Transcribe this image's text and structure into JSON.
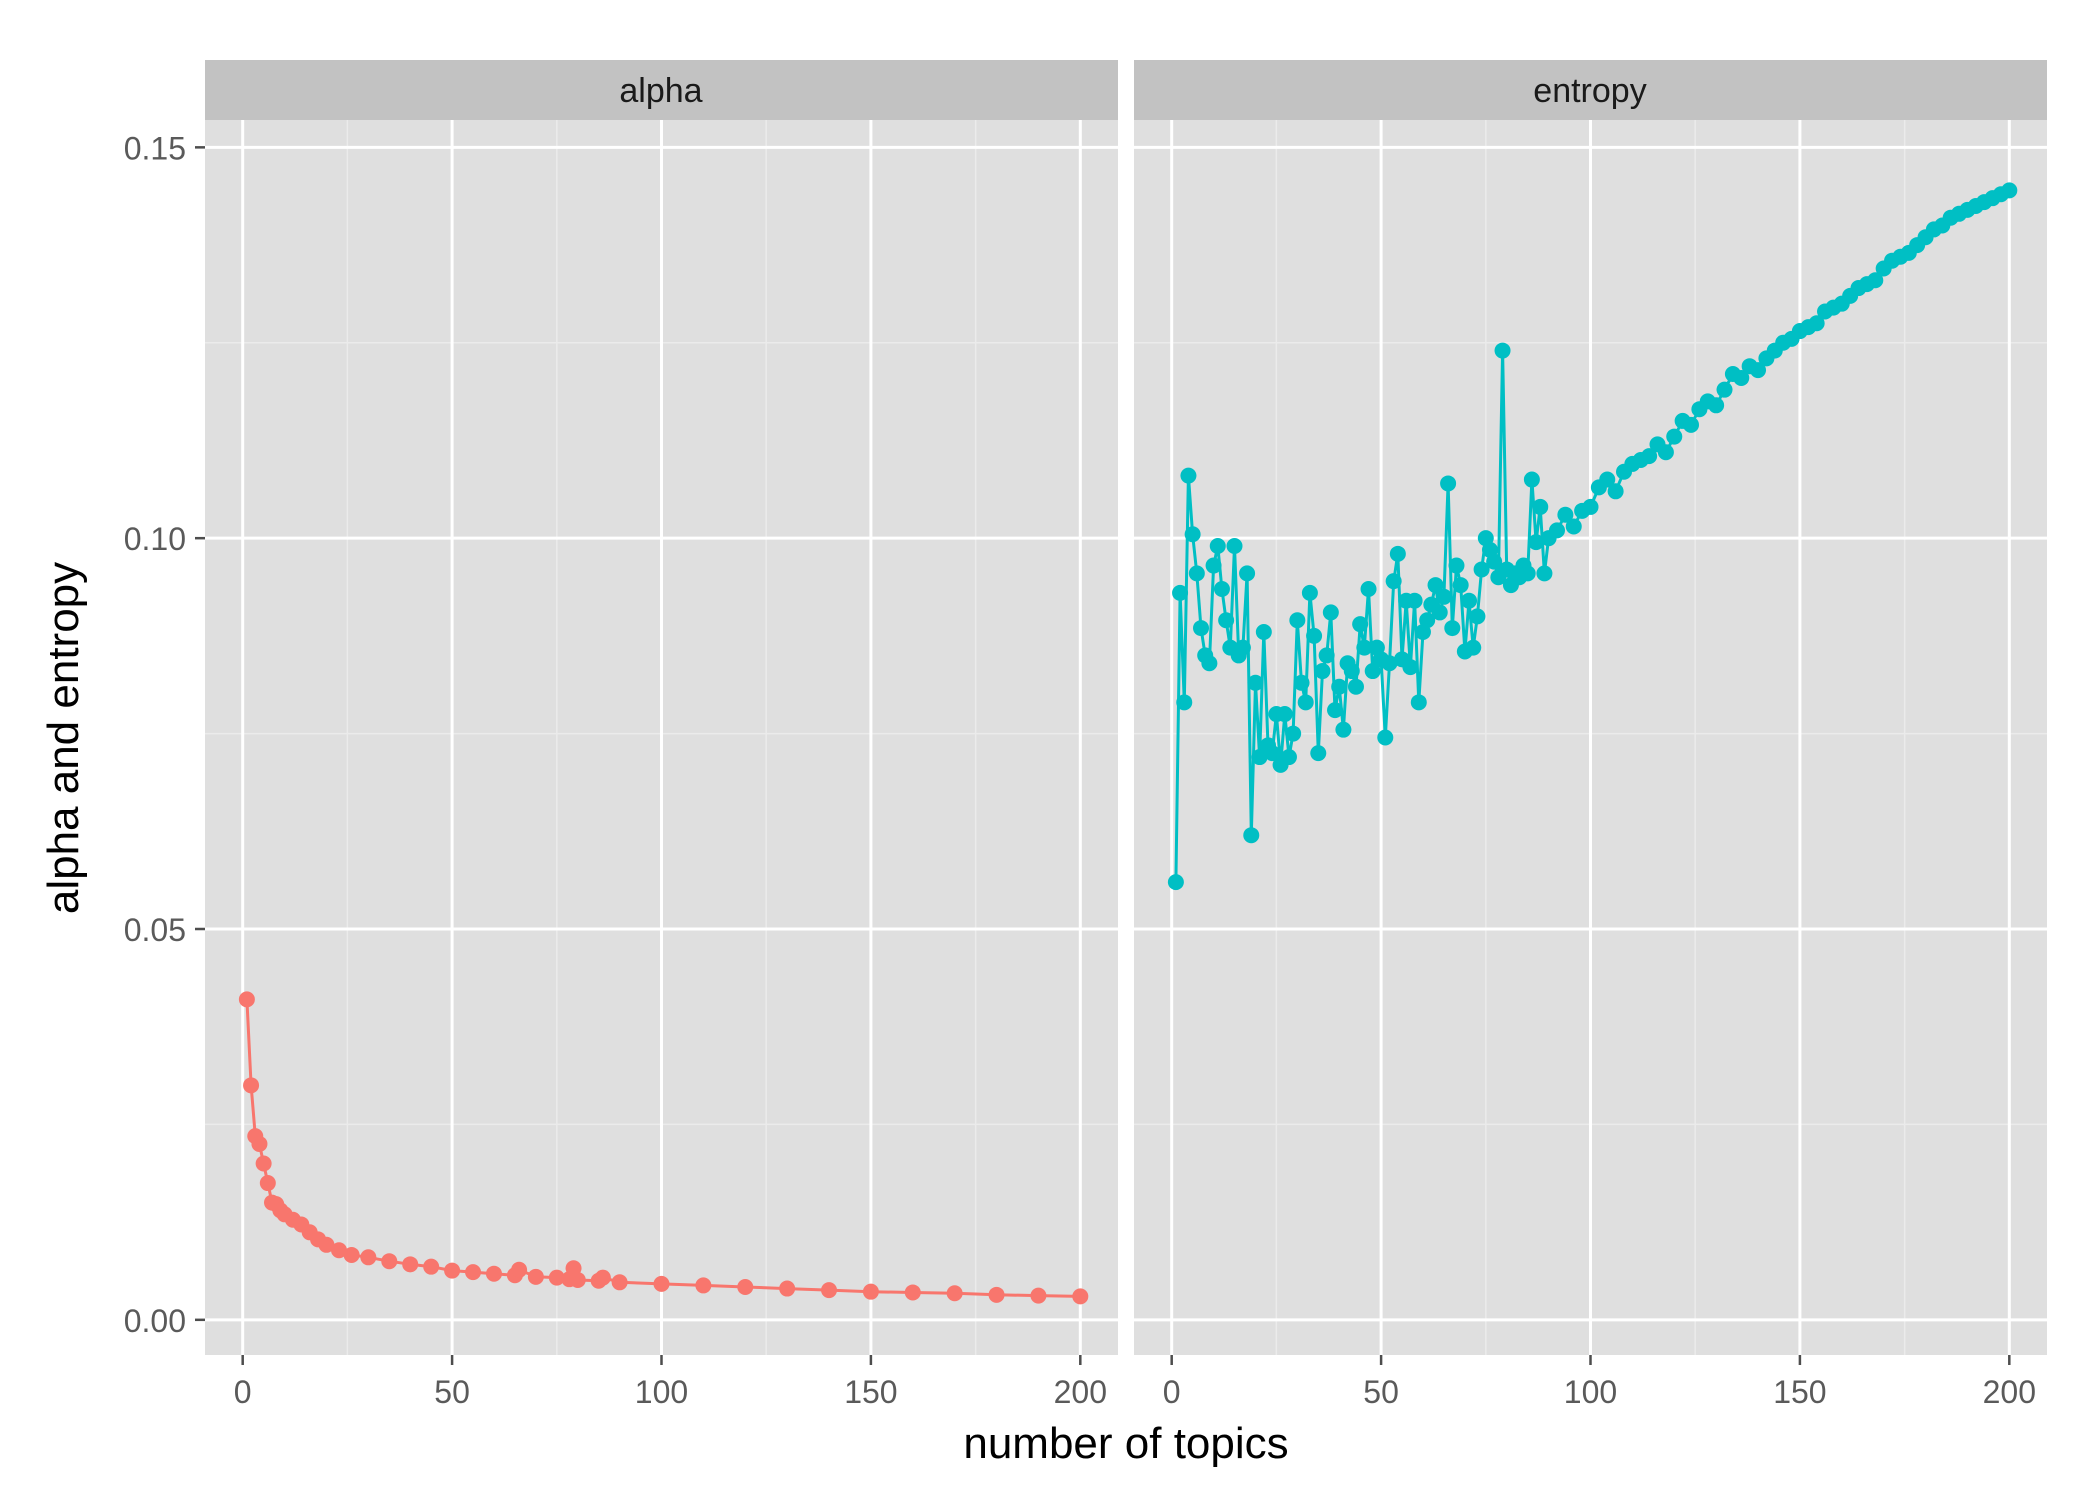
{
  "chart_data": {
    "type": "line",
    "xlabel": "number of topics",
    "ylabel": "alpha and entropy",
    "xlim": [
      -9,
      209
    ],
    "ylim": [
      -0.0045,
      0.1535
    ],
    "x_ticks": [
      0,
      50,
      100,
      150,
      200
    ],
    "y_ticks": [
      0.0,
      0.05,
      0.1,
      0.15
    ],
    "x_tick_labels": [
      "0",
      "50",
      "100",
      "150",
      "200"
    ],
    "y_tick_labels": [
      "0.00",
      "0.05",
      "0.10",
      "0.15"
    ],
    "grid": true,
    "legend": "none",
    "panels": [
      {
        "strip_label": "alpha",
        "color": "#F8766D",
        "x": [
          1,
          2,
          3,
          4,
          5,
          6,
          7,
          8,
          9,
          10,
          12,
          14,
          16,
          18,
          20,
          23,
          26,
          30,
          35,
          40,
          45,
          50,
          55,
          60,
          65,
          66,
          70,
          75,
          78,
          79,
          80,
          85,
          86,
          90,
          100,
          110,
          120,
          130,
          140,
          150,
          160,
          170,
          180,
          190,
          200
        ],
        "values": [
          0.041,
          0.03,
          0.0235,
          0.0225,
          0.02,
          0.0175,
          0.015,
          0.0148,
          0.014,
          0.0135,
          0.0128,
          0.0122,
          0.0112,
          0.0103,
          0.0096,
          0.0089,
          0.0083,
          0.008,
          0.0075,
          0.0071,
          0.0068,
          0.0063,
          0.0061,
          0.0059,
          0.0057,
          0.0064,
          0.0055,
          0.0054,
          0.0052,
          0.0066,
          0.0051,
          0.005,
          0.0054,
          0.0048,
          0.0046,
          0.0044,
          0.0042,
          0.004,
          0.0038,
          0.0036,
          0.0035,
          0.0034,
          0.0032,
          0.0031,
          0.003
        ]
      },
      {
        "strip_label": "entropy",
        "color": "#00BFC4",
        "x": [
          1,
          2,
          3,
          4,
          5,
          6,
          7,
          8,
          9,
          10,
          11,
          12,
          13,
          14,
          15,
          16,
          17,
          18,
          19,
          20,
          21,
          22,
          23,
          24,
          25,
          26,
          27,
          28,
          29,
          30,
          31,
          32,
          33,
          34,
          35,
          36,
          37,
          38,
          39,
          40,
          41,
          42,
          43,
          44,
          45,
          46,
          47,
          48,
          49,
          50,
          51,
          52,
          53,
          54,
          55,
          56,
          57,
          58,
          59,
          60,
          61,
          62,
          63,
          64,
          65,
          66,
          67,
          68,
          69,
          70,
          71,
          72,
          73,
          74,
          75,
          76,
          77,
          78,
          79,
          80,
          81,
          82,
          83,
          84,
          85,
          86,
          87,
          88,
          89,
          90,
          92,
          94,
          96,
          98,
          100,
          102,
          104,
          106,
          108,
          110,
          112,
          114,
          116,
          118,
          120,
          122,
          124,
          126,
          128,
          130,
          132,
          134,
          136,
          138,
          140,
          142,
          144,
          146,
          148,
          150,
          152,
          154,
          156,
          158,
          160,
          162,
          164,
          166,
          168,
          170,
          172,
          174,
          176,
          178,
          180,
          182,
          184,
          186,
          188,
          190,
          192,
          194,
          196,
          198,
          200
        ],
        "values": [
          0.056,
          0.093,
          0.079,
          0.108,
          0.1005,
          0.0955,
          0.0885,
          0.085,
          0.084,
          0.0965,
          0.099,
          0.0935,
          0.0895,
          0.086,
          0.099,
          0.085,
          0.086,
          0.0955,
          0.062,
          0.0815,
          0.072,
          0.088,
          0.0735,
          0.0725,
          0.0775,
          0.071,
          0.0775,
          0.072,
          0.075,
          0.0895,
          0.0815,
          0.079,
          0.093,
          0.0875,
          0.0725,
          0.083,
          0.085,
          0.0905,
          0.078,
          0.081,
          0.0755,
          0.084,
          0.083,
          0.081,
          0.089,
          0.086,
          0.0935,
          0.083,
          0.086,
          0.0845,
          0.0745,
          0.084,
          0.0945,
          0.098,
          0.0845,
          0.092,
          0.0835,
          0.092,
          0.079,
          0.088,
          0.0895,
          0.0915,
          0.094,
          0.0905,
          0.0925,
          0.107,
          0.0885,
          0.0965,
          0.094,
          0.0855,
          0.092,
          0.086,
          0.09,
          0.096,
          0.1,
          0.0985,
          0.097,
          0.095,
          0.124,
          0.096,
          0.094,
          0.0955,
          0.095,
          0.0965,
          0.0955,
          0.1075,
          0.0995,
          0.104,
          0.0955,
          0.1,
          0.101,
          0.103,
          0.1015,
          0.1035,
          0.104,
          0.1065,
          0.1075,
          0.106,
          0.1085,
          0.1095,
          0.11,
          0.1105,
          0.112,
          0.111,
          0.113,
          0.115,
          0.1145,
          0.1165,
          0.1175,
          0.117,
          0.119,
          0.121,
          0.1205,
          0.122,
          0.1215,
          0.123,
          0.124,
          0.125,
          0.1255,
          0.1265,
          0.127,
          0.1275,
          0.129,
          0.1295,
          0.13,
          0.131,
          0.132,
          0.1325,
          0.133,
          0.1345,
          0.1355,
          0.136,
          0.1365,
          0.1375,
          0.1385,
          0.1395,
          0.14,
          0.141,
          0.1415,
          0.142,
          0.1425,
          0.143,
          0.1435,
          0.144,
          0.1445
        ]
      }
    ]
  }
}
